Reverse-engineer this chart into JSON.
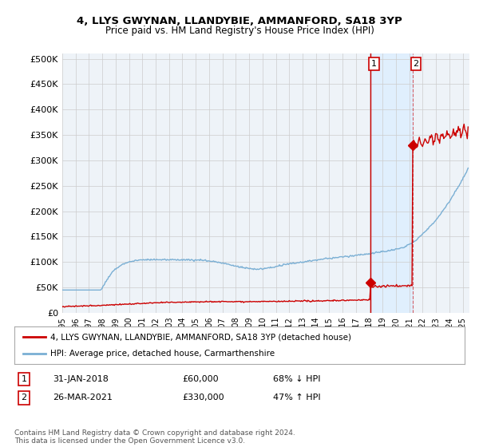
{
  "title": "4, LLYS GWYNAN, LLANDYBIE, AMMANFORD, SA18 3YP",
  "subtitle": "Price paid vs. HM Land Registry's House Price Index (HPI)",
  "ylim": [
    0,
    510000
  ],
  "xlim_start": 1995.0,
  "xlim_end": 2025.5,
  "transaction1_date": 2018.08,
  "transaction1_price": 60000,
  "transaction2_date": 2021.23,
  "transaction2_price": 330000,
  "red_color": "#cc0000",
  "blue_color": "#7aafd4",
  "shade_color": "#ddeeff",
  "legend_label_red": "4, LLYS GWYNAN, LLANDYBIE, AMMANFORD, SA18 3YP (detached house)",
  "legend_label_blue": "HPI: Average price, detached house, Carmarthenshire",
  "footnote": "Contains HM Land Registry data © Crown copyright and database right 2024.\nThis data is licensed under the Open Government Licence v3.0.",
  "background_color": "#ffffff",
  "plot_bg_color": "#eef3f8",
  "grid_color": "#cccccc"
}
